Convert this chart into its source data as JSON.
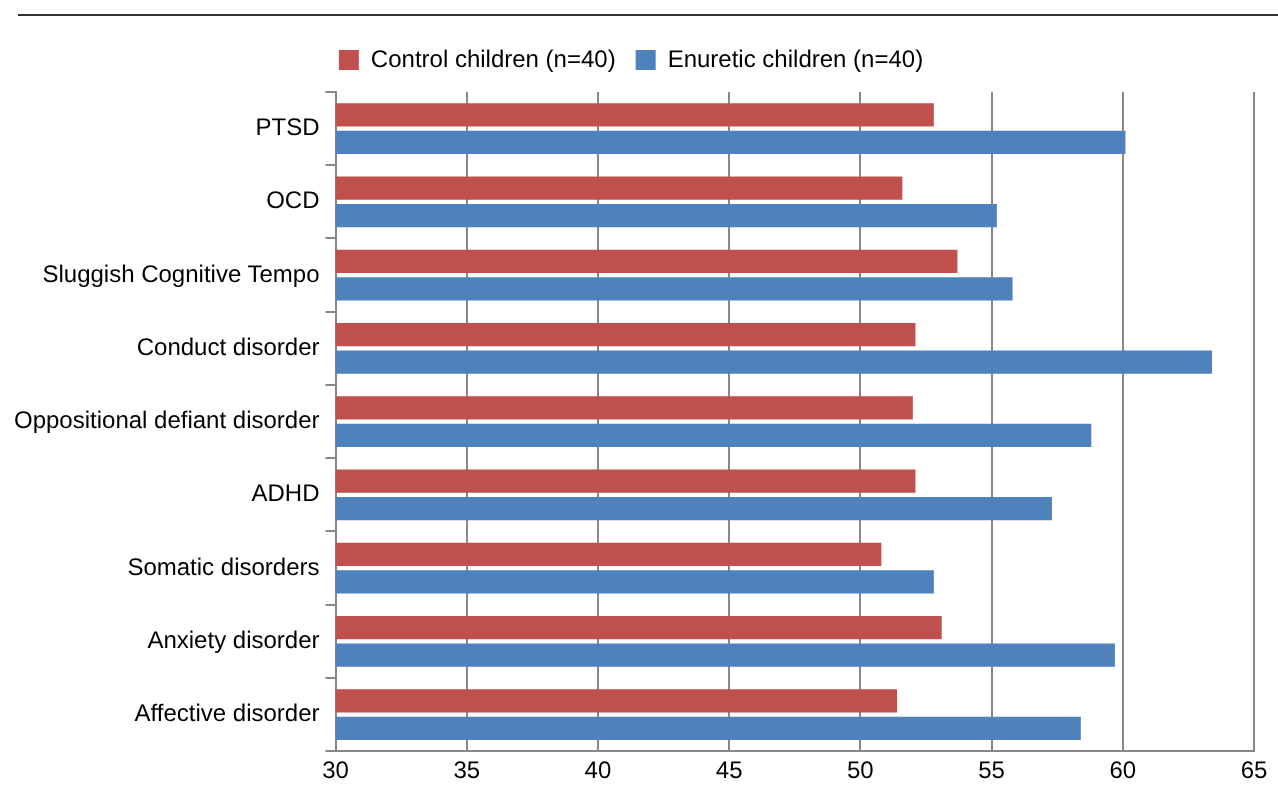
{
  "chart_data": {
    "type": "bar",
    "orientation": "horizontal",
    "categories": [
      "PTSD",
      "OCD",
      "Sluggish Cognitive Tempo",
      "Conduct disorder",
      "Oppositional defiant disorder",
      "ADHD",
      "Somatic disorders",
      "Anxiety disorder",
      "Affective disorder"
    ],
    "series": [
      {
        "name": "Control children (n=40)",
        "color": "#c0504d",
        "values": [
          52.8,
          51.6,
          53.7,
          52.1,
          52.0,
          52.1,
          50.8,
          53.1,
          51.4
        ]
      },
      {
        "name": "Enuretic children (n=40)",
        "color": "#4f81bd",
        "values": [
          60.1,
          55.2,
          55.8,
          63.4,
          58.8,
          57.3,
          52.8,
          59.7,
          58.4
        ]
      }
    ],
    "xlim": [
      30,
      65
    ],
    "xticks": [
      30,
      35,
      40,
      45,
      50,
      55,
      60,
      65
    ],
    "grid": "x",
    "legend": "top"
  }
}
